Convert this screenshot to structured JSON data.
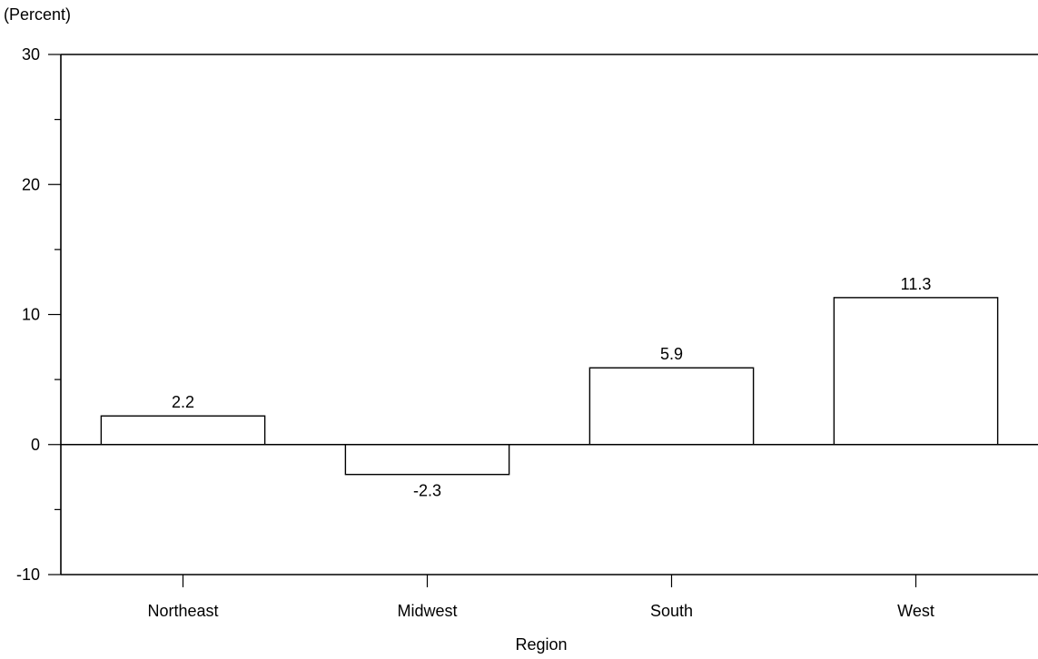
{
  "chart_data": {
    "type": "bar",
    "title": "",
    "unit_label": "(Percent)",
    "xlabel": "Region",
    "ylabel": "",
    "categories": [
      "Northeast",
      "Midwest",
      "South",
      "West"
    ],
    "values": [
      2.2,
      -2.3,
      5.9,
      11.3
    ],
    "value_labels": [
      "2.2",
      "-2.3",
      "5.9",
      "11.3"
    ],
    "ylim": [
      -10,
      30
    ],
    "yticks": [
      -10,
      0,
      10,
      20,
      30
    ],
    "ytick_labels": [
      "-10",
      "0",
      "10",
      "20",
      "30"
    ],
    "minor_ytick_step": 5,
    "grid": false,
    "colors": {
      "bar_fill": "#ffffff",
      "bar_stroke": "#000000",
      "text": "#000000"
    }
  }
}
